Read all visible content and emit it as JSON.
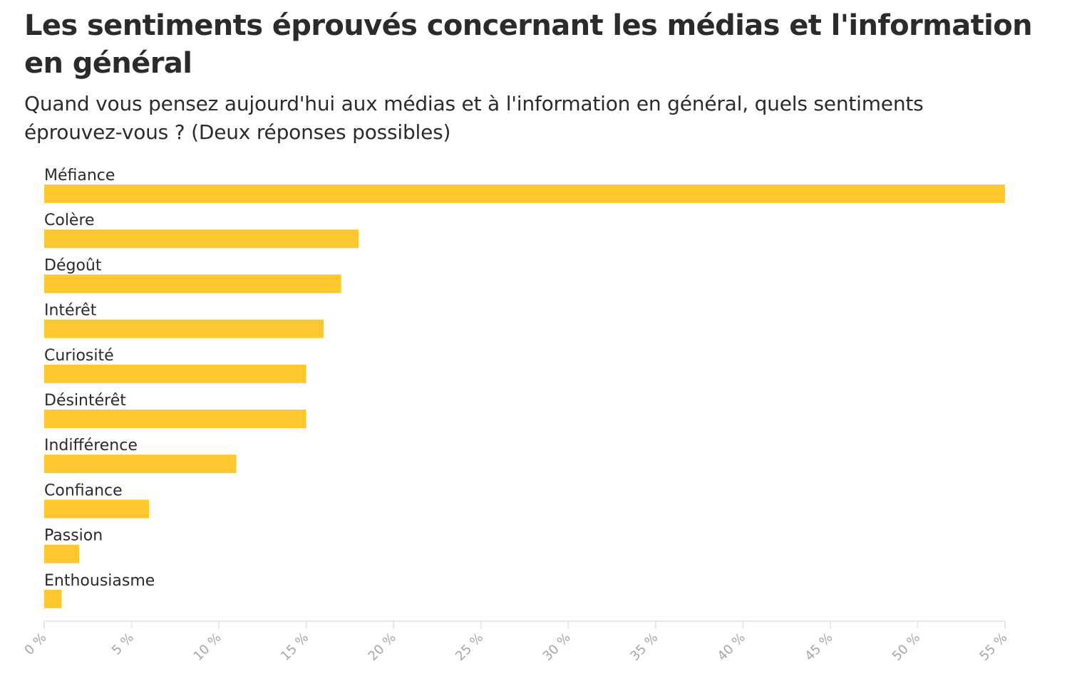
{
  "chart_data": {
    "type": "bar",
    "orientation": "horizontal",
    "title": "Les sentiments éprouvés concernant les médias et l'information en général",
    "subtitle": "Quand vous pensez aujourd'hui aux médias et à l'information en général, quels sentiments éprouvez-vous ? (Deux réponses possibles)",
    "categories": [
      "Méfiance",
      "Colère",
      "Dégoût",
      "Intérêt",
      "Curiosité",
      "Désintérêt",
      "Indifférence",
      "Confiance",
      "Passion",
      "Enthousiasme"
    ],
    "values": [
      55,
      18,
      17,
      16,
      15,
      15,
      11,
      6,
      2,
      1
    ],
    "xlim": [
      0,
      55
    ],
    "ticks": [
      0,
      5,
      10,
      15,
      20,
      25,
      30,
      35,
      40,
      45,
      50,
      55
    ],
    "tick_labels": [
      "0 %",
      "5 %",
      "10 %",
      "15 %",
      "20 %",
      "25 %",
      "30 %",
      "35 %",
      "40 %",
      "45 %",
      "50 %",
      "55 %"
    ],
    "bar_color": "#fdc82f",
    "axis_color": "#e6e6e6",
    "tick_label_color": "#a6a6a6",
    "grid": false,
    "legend": "none"
  }
}
